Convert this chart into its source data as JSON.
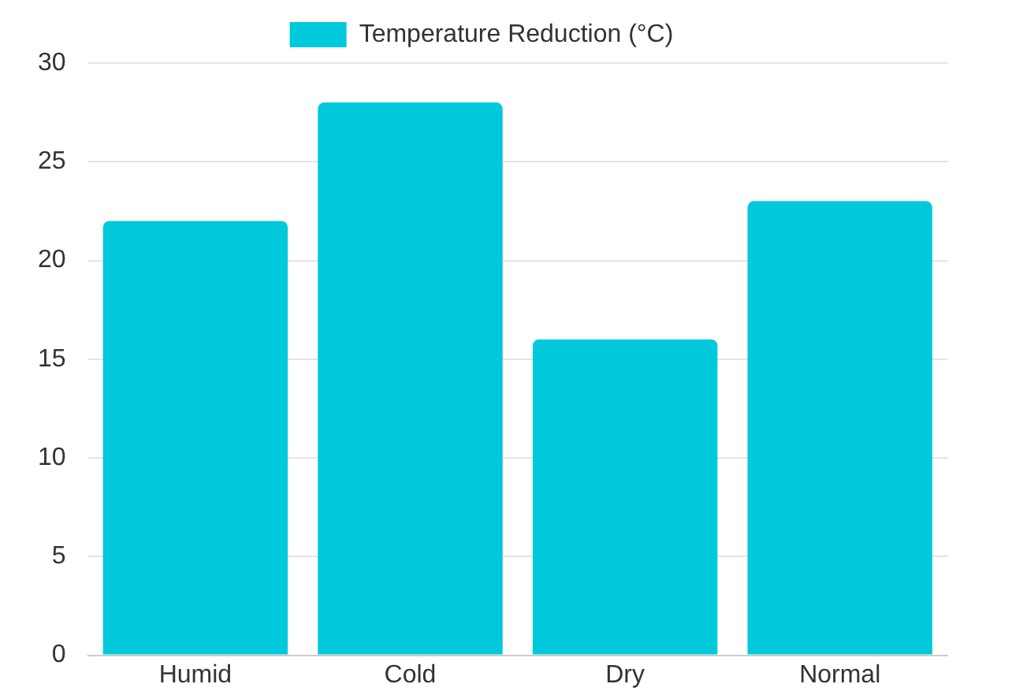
{
  "chart_data": {
    "type": "bar",
    "categories": [
      "Humid",
      "Cold",
      "Dry",
      "Normal"
    ],
    "series": [
      {
        "name": "Temperature Reduction (°C)",
        "color": "#00c9db",
        "values": [
          22,
          28,
          16,
          23
        ]
      }
    ],
    "ylim": [
      0,
      30
    ],
    "yticks": [
      0,
      5,
      10,
      15,
      20,
      25,
      30
    ],
    "grid": "y",
    "legend": "top"
  }
}
